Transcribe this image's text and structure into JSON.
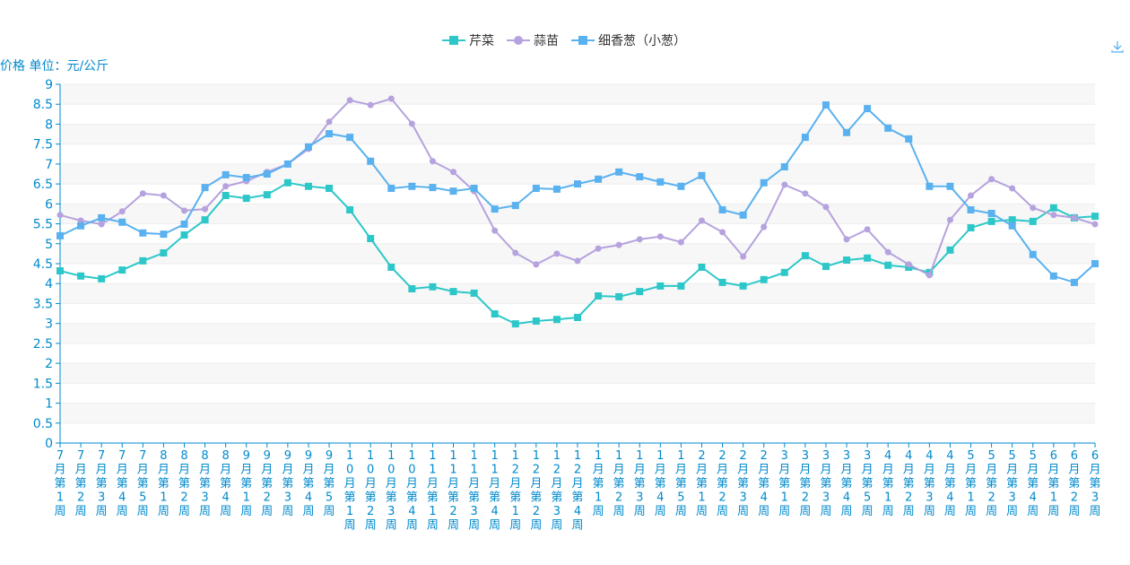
{
  "chart_data": {
    "type": "line",
    "y_axis_name": "价格 单位：元/公斤",
    "ylim": [
      0,
      9
    ],
    "y_ticks": [
      "0",
      "0.5",
      "1",
      "1.5",
      "2",
      "2.5",
      "3",
      "3.5",
      "4",
      "4.5",
      "5",
      "5.5",
      "6",
      "6.5",
      "7",
      "7.5",
      "8",
      "8.5",
      "9"
    ],
    "grid": true,
    "legend_position": "top-center",
    "categories": [
      "7月第1周",
      "7月第2周",
      "7月第3周",
      "7月第4周",
      "7月第5周",
      "8月第1周",
      "8月第2周",
      "8月第3周",
      "8月第4周",
      "9月第1周",
      "9月第2周",
      "9月第3周",
      "9月第4周",
      "9月第5周",
      "10月第1周",
      "10月第2周",
      "10月第3周",
      "10月第4周",
      "11月第1周",
      "11月第2周",
      "11月第3周",
      "11月第4周",
      "12月第1周",
      "12月第2周",
      "12月第3周",
      "12月第4周",
      "1月第1周",
      "1月第2周",
      "1月第3周",
      "1月第4周",
      "1月第5周",
      "2月第1周",
      "2月第2周",
      "2月第3周",
      "2月第4周",
      "3月第1周",
      "3月第2周",
      "3月第3周",
      "3月第4周",
      "3月第5周",
      "4月第1周",
      "4月第2周",
      "4月第3周",
      "4月第4周",
      "5月第1周",
      "5月第2周",
      "5月第3周",
      "5月第4周",
      "6月第1周",
      "6月第2周",
      "6月第3周"
    ],
    "series": [
      {
        "name": "芹菜",
        "color": "#2ec7c9",
        "marker": "square",
        "values": [
          4.32,
          4.19,
          4.12,
          4.34,
          4.57,
          4.77,
          5.22,
          5.6,
          6.21,
          6.14,
          6.23,
          6.53,
          6.44,
          6.39,
          5.85,
          5.13,
          4.41,
          3.87,
          3.92,
          3.8,
          3.76,
          3.24,
          2.99,
          3.06,
          3.1,
          3.15,
          3.69,
          3.67,
          3.8,
          3.94,
          3.94,
          4.41,
          4.03,
          3.94,
          4.1,
          4.28,
          4.7,
          4.43,
          4.59,
          4.64,
          4.46,
          4.41,
          4.28,
          4.84,
          5.4,
          5.56,
          5.6,
          5.56,
          5.9,
          5.65,
          5.69
        ]
      },
      {
        "name": "蒜苗",
        "color": "#b6a2de",
        "marker": "circle",
        "values": [
          5.72,
          5.58,
          5.49,
          5.81,
          6.26,
          6.21,
          5.83,
          5.87,
          6.44,
          6.57,
          6.8,
          7.0,
          7.38,
          8.06,
          8.6,
          8.48,
          8.64,
          8.01,
          7.07,
          6.8,
          6.32,
          5.33,
          4.77,
          4.48,
          4.75,
          4.57,
          4.88,
          4.97,
          5.11,
          5.18,
          5.04,
          5.58,
          5.29,
          4.68,
          5.42,
          6.48,
          6.26,
          5.92,
          5.11,
          5.36,
          4.79,
          4.48,
          4.21,
          5.6,
          6.21,
          6.62,
          6.39,
          5.9,
          5.72,
          5.65,
          5.49
        ]
      },
      {
        "name": "细香葱（小葱）",
        "color": "#5ab1ef",
        "marker": "square",
        "values": [
          5.2,
          5.45,
          5.65,
          5.54,
          5.27,
          5.24,
          5.49,
          6.41,
          6.73,
          6.66,
          6.75,
          7.0,
          7.43,
          7.76,
          7.67,
          7.07,
          6.39,
          6.44,
          6.41,
          6.32,
          6.39,
          5.87,
          5.96,
          6.39,
          6.37,
          6.5,
          6.62,
          6.8,
          6.68,
          6.55,
          6.44,
          6.71,
          5.85,
          5.72,
          6.53,
          6.93,
          7.67,
          8.48,
          7.79,
          8.39,
          7.9,
          7.63,
          6.44,
          6.44,
          5.85,
          5.76,
          5.45,
          4.73,
          4.19,
          4.03,
          4.5
        ]
      }
    ]
  },
  "axis_color": "#008acd",
  "toolbox": {
    "download_icon": "download-icon"
  }
}
